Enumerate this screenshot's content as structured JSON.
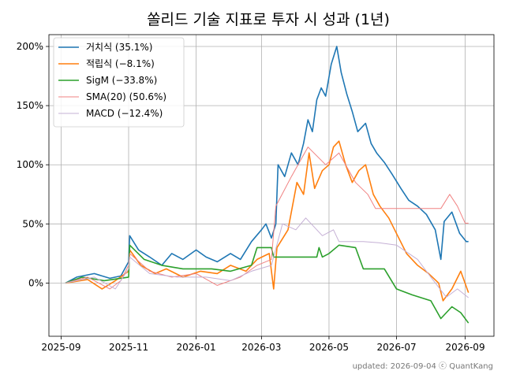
{
  "chart_data": {
    "type": "line",
    "title": "쏠리드 기술 지표로 투자 시 성과 (1년)",
    "xlabel": "",
    "ylabel": "",
    "grid": true,
    "legend_position": "top-left",
    "x_ticks": [
      "2025-09",
      "2025-11",
      "2026-01",
      "2026-03",
      "2026-05",
      "2026-07",
      "2026-09"
    ],
    "y_ticks": [
      "0%",
      "50%",
      "100%",
      "150%",
      "200%"
    ],
    "y_tick_values": [
      0,
      50,
      100,
      150,
      200
    ],
    "xlim": [
      "2025-08-21",
      "2026-09-27"
    ],
    "ylim": [
      -45,
      210
    ],
    "footer": "updated: 2026-09-04 ⓒ QuantKang",
    "series": [
      {
        "name": "거치식 (35.1%)",
        "color": "#1f77b4",
        "width": 1.6,
        "points": [
          [
            "2025-09-05",
            0
          ],
          [
            "2025-09-15",
            5
          ],
          [
            "2025-10-01",
            8
          ],
          [
            "2025-10-15",
            4
          ],
          [
            "2025-10-25",
            6
          ],
          [
            "2025-11-01",
            18
          ],
          [
            "2025-11-02",
            40
          ],
          [
            "2025-11-10",
            28
          ],
          [
            "2025-11-20",
            22
          ],
          [
            "2025-12-01",
            15
          ],
          [
            "2025-12-10",
            25
          ],
          [
            "2025-12-20",
            20
          ],
          [
            "2026-01-01",
            28
          ],
          [
            "2026-01-10",
            22
          ],
          [
            "2026-01-20",
            18
          ],
          [
            "2026-02-01",
            25
          ],
          [
            "2026-02-10",
            20
          ],
          [
            "2026-02-20",
            35
          ],
          [
            "2026-03-01",
            45
          ],
          [
            "2026-03-05",
            50
          ],
          [
            "2026-03-10",
            38
          ],
          [
            "2026-03-14",
            50
          ],
          [
            "2026-03-16",
            100
          ],
          [
            "2026-03-22",
            90
          ],
          [
            "2026-03-28",
            110
          ],
          [
            "2026-04-03",
            100
          ],
          [
            "2026-04-08",
            118
          ],
          [
            "2026-04-12",
            138
          ],
          [
            "2026-04-16",
            128
          ],
          [
            "2026-04-20",
            155
          ],
          [
            "2026-04-24",
            165
          ],
          [
            "2026-04-28",
            158
          ],
          [
            "2026-05-03",
            185
          ],
          [
            "2026-05-08",
            200
          ],
          [
            "2026-05-12",
            178
          ],
          [
            "2026-05-17",
            160
          ],
          [
            "2026-05-22",
            145
          ],
          [
            "2026-05-27",
            128
          ],
          [
            "2026-06-03",
            135
          ],
          [
            "2026-06-08",
            118
          ],
          [
            "2026-06-13",
            110
          ],
          [
            "2026-06-20",
            102
          ],
          [
            "2026-06-27",
            92
          ],
          [
            "2026-07-05",
            80
          ],
          [
            "2026-07-12",
            70
          ],
          [
            "2026-07-20",
            65
          ],
          [
            "2026-07-28",
            58
          ],
          [
            "2026-08-05",
            45
          ],
          [
            "2026-08-10",
            20
          ],
          [
            "2026-08-13",
            52
          ],
          [
            "2026-08-20",
            60
          ],
          [
            "2026-08-27",
            42
          ],
          [
            "2026-09-02",
            35
          ],
          [
            "2026-09-04",
            35.1
          ]
        ]
      },
      {
        "name": "적립식 (−8.1%)",
        "color": "#ff7f0e",
        "width": 1.6,
        "points": [
          [
            "2025-09-05",
            0
          ],
          [
            "2025-09-25",
            3
          ],
          [
            "2025-10-08",
            -5
          ],
          [
            "2025-10-20",
            2
          ],
          [
            "2025-11-01",
            10
          ],
          [
            "2025-11-02",
            28
          ],
          [
            "2025-11-12",
            15
          ],
          [
            "2025-11-25",
            8
          ],
          [
            "2025-12-05",
            12
          ],
          [
            "2025-12-20",
            5
          ],
          [
            "2026-01-05",
            10
          ],
          [
            "2026-01-20",
            8
          ],
          [
            "2026-02-01",
            15
          ],
          [
            "2026-02-15",
            10
          ],
          [
            "2026-02-25",
            20
          ],
          [
            "2026-03-08",
            25
          ],
          [
            "2026-03-12",
            -5
          ],
          [
            "2026-03-15",
            30
          ],
          [
            "2026-03-25",
            45
          ],
          [
            "2026-04-02",
            85
          ],
          [
            "2026-04-08",
            75
          ],
          [
            "2026-04-13",
            110
          ],
          [
            "2026-04-18",
            80
          ],
          [
            "2026-04-25",
            95
          ],
          [
            "2026-05-01",
            100
          ],
          [
            "2026-05-05",
            115
          ],
          [
            "2026-05-10",
            120
          ],
          [
            "2026-05-16",
            100
          ],
          [
            "2026-05-22",
            85
          ],
          [
            "2026-05-28",
            95
          ],
          [
            "2026-06-03",
            100
          ],
          [
            "2026-06-10",
            75
          ],
          [
            "2026-06-16",
            65
          ],
          [
            "2026-06-24",
            55
          ],
          [
            "2026-07-02",
            40
          ],
          [
            "2026-07-10",
            25
          ],
          [
            "2026-07-20",
            15
          ],
          [
            "2026-07-30",
            8
          ],
          [
            "2026-08-08",
            0
          ],
          [
            "2026-08-12",
            -15
          ],
          [
            "2026-08-20",
            -5
          ],
          [
            "2026-08-28",
            10
          ],
          [
            "2026-09-04",
            -8.1
          ]
        ]
      },
      {
        "name": "SigM (−33.8%)",
        "color": "#2ca02c",
        "width": 1.6,
        "points": [
          [
            "2025-09-05",
            0
          ],
          [
            "2025-09-20",
            5
          ],
          [
            "2025-10-10",
            2
          ],
          [
            "2025-11-01",
            5
          ],
          [
            "2025-11-02",
            32
          ],
          [
            "2025-11-15",
            20
          ],
          [
            "2025-12-01",
            15
          ],
          [
            "2025-12-20",
            12
          ],
          [
            "2026-01-15",
            12
          ],
          [
            "2026-02-01",
            10
          ],
          [
            "2026-02-20",
            15
          ],
          [
            "2026-02-25",
            30
          ],
          [
            "2026-03-10",
            30
          ],
          [
            "2026-03-12",
            22
          ],
          [
            "2026-04-01",
            22
          ],
          [
            "2026-04-20",
            22
          ],
          [
            "2026-04-22",
            30
          ],
          [
            "2026-04-25",
            22
          ],
          [
            "2026-05-01",
            25
          ],
          [
            "2026-05-10",
            32
          ],
          [
            "2026-05-25",
            30
          ],
          [
            "2026-06-01",
            12
          ],
          [
            "2026-06-20",
            12
          ],
          [
            "2026-07-01",
            -5
          ],
          [
            "2026-07-15",
            -10
          ],
          [
            "2026-08-01",
            -15
          ],
          [
            "2026-08-10",
            -30
          ],
          [
            "2026-08-20",
            -20
          ],
          [
            "2026-08-28",
            -25
          ],
          [
            "2026-09-04",
            -33.8
          ]
        ]
      },
      {
        "name": "SMA(20) (50.6%)",
        "color": "#f08080",
        "width": 1.0,
        "points": [
          [
            "2025-09-05",
            0
          ],
          [
            "2025-09-25",
            5
          ],
          [
            "2025-10-15",
            -5
          ],
          [
            "2025-10-25",
            2
          ],
          [
            "2025-11-01",
            15
          ],
          [
            "2025-11-02",
            25
          ],
          [
            "2025-11-20",
            10
          ],
          [
            "2025-12-10",
            5
          ],
          [
            "2026-01-01",
            8
          ],
          [
            "2026-01-20",
            -2
          ],
          [
            "2026-02-10",
            5
          ],
          [
            "2026-02-25",
            15
          ],
          [
            "2026-03-10",
            20
          ],
          [
            "2026-03-14",
            65
          ],
          [
            "2026-03-28",
            90
          ],
          [
            "2026-04-12",
            115
          ],
          [
            "2026-04-28",
            100
          ],
          [
            "2026-05-10",
            110
          ],
          [
            "2026-05-25",
            85
          ],
          [
            "2026-06-05",
            75
          ],
          [
            "2026-06-12",
            63
          ],
          [
            "2026-07-01",
            63
          ],
          [
            "2026-08-01",
            63
          ],
          [
            "2026-08-10",
            63
          ],
          [
            "2026-08-18",
            75
          ],
          [
            "2026-08-25",
            65
          ],
          [
            "2026-09-01",
            50.6
          ],
          [
            "2026-09-04",
            50.6
          ]
        ]
      },
      {
        "name": "MACD (−12.4%)",
        "color": "#c5b0d5",
        "width": 1.0,
        "points": [
          [
            "2025-09-05",
            0
          ],
          [
            "2025-10-01",
            5
          ],
          [
            "2025-10-20",
            -5
          ],
          [
            "2025-11-01",
            12
          ],
          [
            "2025-11-02",
            22
          ],
          [
            "2025-11-20",
            8
          ],
          [
            "2025-12-15",
            5
          ],
          [
            "2026-01-10",
            5
          ],
          [
            "2026-02-01",
            2
          ],
          [
            "2026-02-20",
            10
          ],
          [
            "2026-03-10",
            15
          ],
          [
            "2026-03-20",
            50
          ],
          [
            "2026-04-01",
            45
          ],
          [
            "2026-04-10",
            55
          ],
          [
            "2026-04-25",
            40
          ],
          [
            "2026-05-05",
            45
          ],
          [
            "2026-05-10",
            35
          ],
          [
            "2026-06-01",
            35
          ],
          [
            "2026-06-15",
            34
          ],
          [
            "2026-07-01",
            32
          ],
          [
            "2026-07-20",
            20
          ],
          [
            "2026-08-01",
            5
          ],
          [
            "2026-08-15",
            -12
          ],
          [
            "2026-08-25",
            -5
          ],
          [
            "2026-09-04",
            -12.4
          ]
        ]
      }
    ]
  }
}
